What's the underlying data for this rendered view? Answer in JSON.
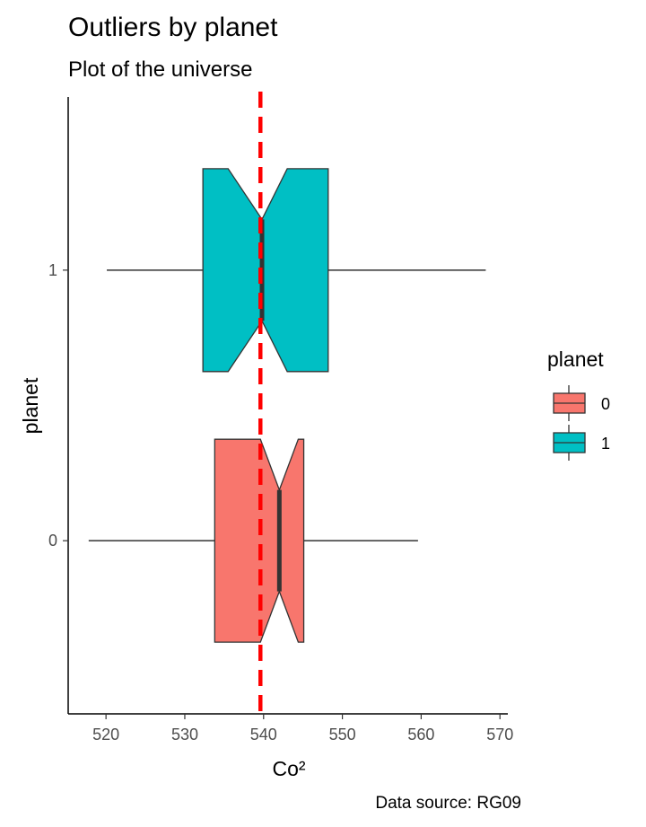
{
  "chart_data": {
    "type": "boxplot",
    "orientation": "horizontal",
    "notched": true,
    "title": "Outliers by planet",
    "subtitle": "Plot of the universe",
    "xlabel": "Co²",
    "ylabel": "planet",
    "caption": "Data source: RG09",
    "xlim": [
      515.2,
      571.0
    ],
    "x_ticks": [
      520,
      530,
      540,
      550,
      560,
      570
    ],
    "x_tick_labels": [
      "520",
      "530",
      "540",
      "550",
      "560",
      "570"
    ],
    "categories": [
      "0",
      "1"
    ],
    "grid": false,
    "legend": {
      "title": "planet",
      "position": "right",
      "entries": [
        {
          "label": "0",
          "color": "#F8766D"
        },
        {
          "label": "1",
          "color": "#00BFC4"
        }
      ]
    },
    "series": [
      {
        "name": "0",
        "color": "#F8766D",
        "whisker_low": 517.8,
        "q1": 533.8,
        "median": 542.0,
        "q3": 545.1,
        "whisker_high": 559.6,
        "notch_low": 539.6,
        "notch_high": 544.4
      },
      {
        "name": "1",
        "color": "#00BFC4",
        "whisker_low": 520.1,
        "q1": 532.3,
        "median": 539.8,
        "q3": 548.2,
        "whisker_high": 568.2,
        "notch_low": 535.5,
        "notch_high": 543.0
      }
    ],
    "reference_line": {
      "x": 539.6,
      "color": "#FF0000",
      "style": "dashed"
    }
  }
}
